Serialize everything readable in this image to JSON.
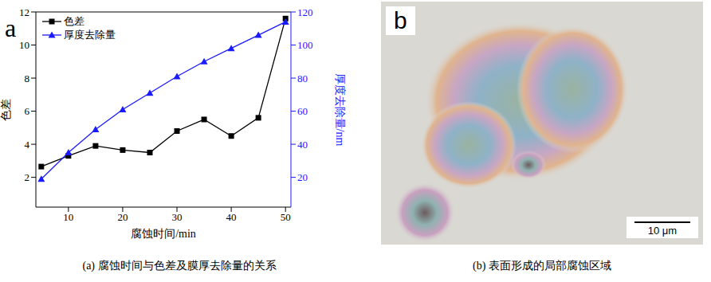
{
  "chart_data": {
    "type": "line",
    "x_label": "腐蚀时间/min",
    "y_label": "色差",
    "y2_label": "厚度去除量/nm",
    "x": [
      5,
      10,
      15,
      20,
      25,
      30,
      35,
      40,
      45,
      50
    ],
    "xlim": [
      4,
      51
    ],
    "xticks": [
      10,
      20,
      30,
      40,
      50
    ],
    "ylim": [
      0.2,
      12
    ],
    "yticks": [
      2,
      4,
      6,
      8,
      10,
      12
    ],
    "y2lim": [
      2,
      120
    ],
    "y2ticks": [
      20,
      40,
      60,
      80,
      100,
      120
    ],
    "legend": "upper left",
    "grid": false,
    "series": [
      {
        "name": "色差",
        "color": "#000000",
        "marker": "square",
        "values": [
          2.65,
          3.3,
          3.9,
          3.65,
          3.5,
          4.8,
          5.5,
          4.5,
          5.6,
          11.6
        ]
      },
      {
        "name": "厚度去除量",
        "color": "#1a1aff",
        "marker": "triangle",
        "axis": "y2",
        "values": [
          19,
          35,
          49,
          61,
          71,
          81,
          90,
          98,
          106,
          114
        ]
      }
    ]
  },
  "figure": {
    "panel_labels": [
      "a",
      "b"
    ],
    "captions": [
      "(a) 腐蚀时间与色差及膜厚去除量的关系",
      "(b) 表面形成的局部腐蚀区域"
    ],
    "scale_bar": "10 μm"
  }
}
